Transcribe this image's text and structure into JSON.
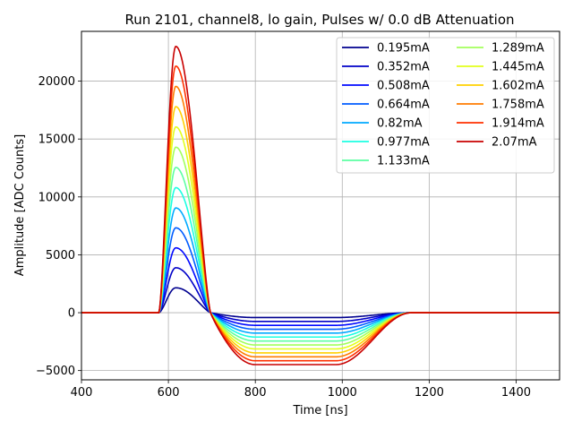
{
  "chart_data": {
    "type": "line",
    "title": "Run 2101, channel8, lo gain, Pulses w/ 0.0 dB Attenuation",
    "xlabel": "Time [ns]",
    "ylabel": "Amplitude [ADC Counts]",
    "xlim": [
      400,
      1500
    ],
    "ylim": [
      -5800,
      24300
    ],
    "xticks": [
      400,
      600,
      800,
      1000,
      1200,
      1400
    ],
    "xtick_labels": [
      "400",
      "600",
      "800",
      "1000",
      "1200",
      "1400"
    ],
    "yticks": [
      -5000,
      0,
      5000,
      10000,
      15000,
      20000
    ],
    "ytick_labels": [
      "−5000",
      "0",
      "5000",
      "10000",
      "15000",
      "20000"
    ],
    "grid": true,
    "legend_position": "top-right",
    "legend_columns": 2,
    "pulse": {
      "start_ns": 578,
      "peak_ns": 617,
      "zero_cross_ns": 697,
      "undershoot_min_ns": 800,
      "recovery_start_ns": 985,
      "recovery_end_ns": 1160,
      "undershoot_ratio": 0.195
    },
    "series": [
      {
        "name": "0.195mA",
        "peak": 2150,
        "color": "#00008f"
      },
      {
        "name": "0.352mA",
        "peak": 3880,
        "color": "#0000c8"
      },
      {
        "name": "0.508mA",
        "peak": 5600,
        "color": "#0008ff"
      },
      {
        "name": "0.664mA",
        "peak": 7330,
        "color": "#005cff"
      },
      {
        "name": "0.82mA",
        "peak": 9050,
        "color": "#00aaff"
      },
      {
        "name": "0.977mA",
        "peak": 10800,
        "color": "#1cffe2"
      },
      {
        "name": "1.133mA",
        "peak": 12550,
        "color": "#5cffa2"
      },
      {
        "name": "1.289mA",
        "peak": 14300,
        "color": "#a2ff5c"
      },
      {
        "name": "1.445mA",
        "peak": 16050,
        "color": "#e2ff1c"
      },
      {
        "name": "1.602mA",
        "peak": 17800,
        "color": "#ffd000"
      },
      {
        "name": "1.758mA",
        "peak": 19550,
        "color": "#ff7c00"
      },
      {
        "name": "1.914mA",
        "peak": 21300,
        "color": "#ff3000"
      },
      {
        "name": "2.07mA",
        "peak": 23000,
        "color": "#c80000"
      }
    ]
  }
}
